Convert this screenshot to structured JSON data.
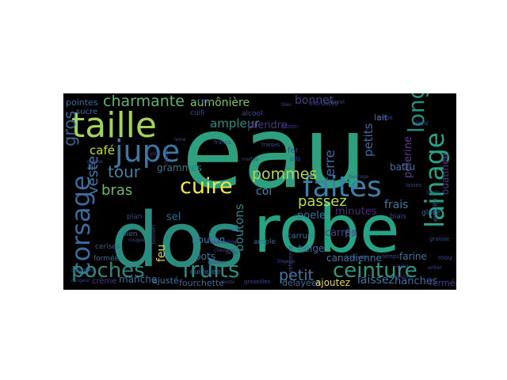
{
  "wordcloud": {
    "background": "#000000",
    "words": [
      {
        "text": "eau",
        "color": "#2fa07f"
      },
      {
        "text": "dos",
        "color": "#2a8b7f"
      },
      {
        "text": "robe",
        "color": "#26a384"
      },
      {
        "text": "taille",
        "color": "#9fd45a"
      },
      {
        "text": "jupe",
        "color": "#3b78a6"
      },
      {
        "text": "corsage",
        "color": "#3a6ba0"
      },
      {
        "text": "lainage",
        "color": "#26a387"
      },
      {
        "text": "long",
        "color": "#2a8c80"
      },
      {
        "text": "faites",
        "color": "#3b80a8"
      },
      {
        "text": "ceinture",
        "color": "#2a9a84"
      },
      {
        "text": "fruits",
        "color": "#2a8c80"
      },
      {
        "text": "cuire",
        "color": "#f1e83d"
      },
      {
        "text": "poches",
        "color": "#2c8981"
      },
      {
        "text": "charmante",
        "color": "#60b373"
      },
      {
        "text": "aumônière",
        "color": "#7cc466"
      },
      {
        "text": "bonnet",
        "color": "#463f87"
      },
      {
        "text": "gros",
        "color": "#38648e"
      },
      {
        "text": "café",
        "color": "#c6d83b"
      },
      {
        "text": "tour",
        "color": "#3d7fa6"
      },
      {
        "text": "bras",
        "color": "#6aba67"
      },
      {
        "text": "veste",
        "color": "#3e77a7"
      },
      {
        "text": "pommes",
        "color": "#b2d552"
      },
      {
        "text": "passez",
        "color": "#b9de4a"
      },
      {
        "text": "petit",
        "color": "#4477a5"
      },
      {
        "text": "petits",
        "color": "#3b6c9e"
      },
      {
        "text": "terre",
        "color": "#3b6aa0"
      },
      {
        "text": "ampleur",
        "color": "#2f8b86"
      },
      {
        "text": "prendre",
        "color": "#4a3585"
      },
      {
        "text": "pèlerine",
        "color": "#5d3e8c"
      },
      {
        "text": "ouatinée",
        "color": "#5d3188"
      },
      {
        "text": "frais",
        "color": "#3a7ca6"
      },
      {
        "text": "poele",
        "color": "#3a74a2"
      },
      {
        "text": "minutes",
        "color": "#4a2b80"
      },
      {
        "text": "bouton",
        "color": "#3a76a3"
      },
      {
        "text": "boutons",
        "color": "#2f8183"
      },
      {
        "text": "feu",
        "color": "#e8d33b"
      },
      {
        "text": "sel",
        "color": "#2d6a94"
      },
      {
        "text": "col",
        "color": "#3d88a8"
      },
      {
        "text": "pots",
        "color": "#3a759f"
      },
      {
        "text": "grammes",
        "color": "#38788f"
      },
      {
        "text": "laissez",
        "color": "#3b78a4"
      },
      {
        "text": "hanches",
        "color": "#3c6ea1"
      },
      {
        "text": "fermée",
        "color": "#4b3a88"
      },
      {
        "text": "manche",
        "color": "#3b6c9e"
      },
      {
        "text": "ajusté",
        "color": "#3d79a8"
      },
      {
        "text": "fourchette",
        "color": "#3a6b99"
      },
      {
        "text": "crème",
        "color": "#4a3a86"
      },
      {
        "text": "délayées",
        "color": "#3b6ca0"
      },
      {
        "text": "ajoutez",
        "color": "#f1d83a"
      },
      {
        "text": "canadienne",
        "color": "#3a78a4"
      },
      {
        "text": "beige",
        "color": "#3f6a9c"
      },
      {
        "text": "carrés",
        "color": "#4b3e8b"
      },
      {
        "text": "fin",
        "color": "#3a6b9c"
      },
      {
        "text": "farine",
        "color": "#3b75a3"
      },
      {
        "text": "battu",
        "color": "#3b75a3"
      },
      {
        "text": "lait",
        "color": "#3b6ea0"
      },
      {
        "text": "blanc",
        "color": "#3a4e91"
      },
      {
        "text": "crêpe",
        "color": "#4a3f8a"
      },
      {
        "text": "pointes",
        "color": "#3b6d9f"
      },
      {
        "text": "sucre",
        "color": "#3a6899"
      },
      {
        "text": "fil",
        "color": "#3c6d9e"
      },
      {
        "text": "cou",
        "color": "#3f4a8a"
      },
      {
        "text": "cuill",
        "color": "#3a4f8a"
      },
      {
        "text": "alcool",
        "color": "#3a4e8a"
      },
      {
        "text": "fraises",
        "color": "#3a4b86"
      },
      {
        "text": "servi",
        "color": "#3a4e88"
      },
      {
        "text": "saison",
        "color": "#42367e"
      },
      {
        "text": "etc",
        "color": "#3b74a1"
      },
      {
        "text": "fer",
        "color": "#3a4988"
      },
      {
        "text": "plis",
        "color": "#3a4988"
      },
      {
        "text": "ample",
        "color": "#3a6999"
      },
      {
        "text": "carrure",
        "color": "#3a72a0"
      },
      {
        "text": "plan",
        "color": "#3a4788"
      },
      {
        "text": "bien",
        "color": "#3b6a9b"
      },
      {
        "text": "cerises",
        "color": "#3a5c92"
      },
      {
        "text": "formée",
        "color": "#3a6b9c"
      },
      {
        "text": "cuillerée",
        "color": "#3a6b9c"
      },
      {
        "text": "biais",
        "color": "#3a4988"
      },
      {
        "text": "glacé",
        "color": "#3a6b9c"
      },
      {
        "text": "ensuite",
        "color": "#3a6b9c"
      },
      {
        "text": "lapin",
        "color": "#3a4988"
      },
      {
        "text": "laines",
        "color": "#3a4988"
      },
      {
        "text": "temps",
        "color": "#3a4988"
      },
      {
        "text": "mou",
        "color": "#3a4988"
      },
      {
        "text": "incrustée",
        "color": "#3a4988"
      },
      {
        "text": "poignets",
        "color": "#3a4988"
      },
      {
        "text": "préférence",
        "color": "#3a4988"
      },
      {
        "text": "lingerie",
        "color": "#3a4988"
      },
      {
        "text": "bleu",
        "color": "#3a4988"
      },
      {
        "text": "grosse",
        "color": "#3a4988"
      },
      {
        "text": "francs",
        "color": "#3a4988"
      },
      {
        "text": "chaque",
        "color": "#3a4988"
      },
      {
        "text": "large",
        "color": "#3a4988"
      },
      {
        "text": "mousseline",
        "color": "#3a4988"
      },
      {
        "text": "doubler",
        "color": "#3a4988"
      },
      {
        "text": "poste",
        "color": "#3a4988"
      },
      {
        "text": "groseilles",
        "color": "#3a4988"
      },
      {
        "text": "rouges",
        "color": "#3a4988"
      },
      {
        "text": "bonnets",
        "color": "#3a4988"
      },
      {
        "text": "chevaux",
        "color": "#3a4988"
      },
      {
        "text": "graisse",
        "color": "#3a4988"
      },
      {
        "text": "fourrage",
        "color": "#3a4988"
      },
      {
        "text": "jaune",
        "color": "#3a4988"
      },
      {
        "text": "aussi",
        "color": "#3a4988"
      },
      {
        "text": "entier",
        "color": "#3a4988"
      },
      {
        "text": "plus",
        "color": "#3a4988"
      },
      {
        "text": "mettez",
        "color": "#3a4988"
      },
      {
        "text": "laine",
        "color": "#3a4988"
      },
      {
        "text": "cuillerées",
        "color": "#3a4988"
      },
      {
        "text": "rangeur",
        "color": "#3a4988"
      }
    ]
  }
}
